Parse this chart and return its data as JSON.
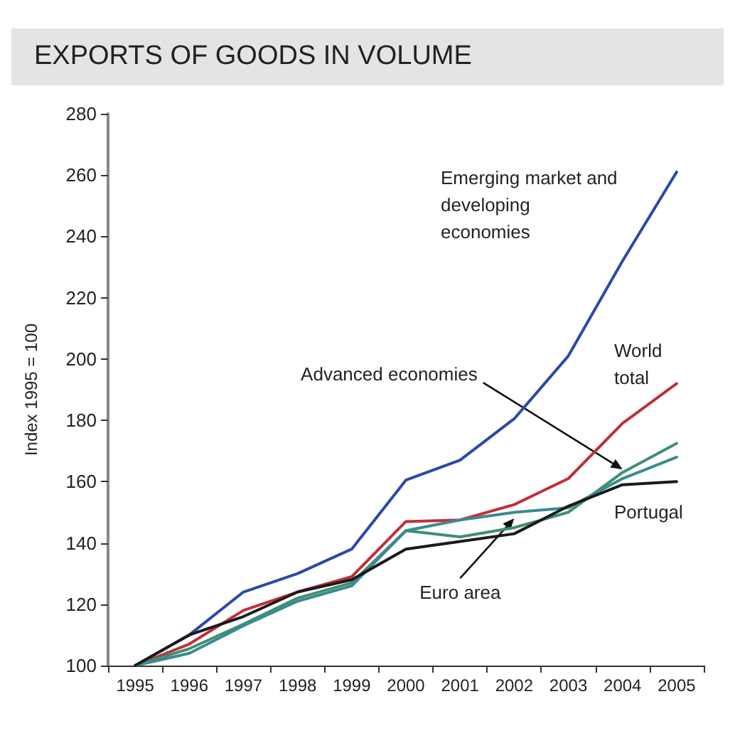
{
  "chart_data": {
    "type": "line",
    "title": "EXPORTS OF GOODS IN VOLUME",
    "ylabel": "Index 1995 = 100",
    "categories": [
      "1995",
      "1996",
      "1997",
      "1998",
      "1999",
      "2000",
      "2001",
      "2002",
      "2003",
      "2004",
      "2005"
    ],
    "series": [
      {
        "color": "#2a4aa8",
        "values": [
          100,
          110,
          124,
          130,
          138,
          160.5,
          167,
          180.5,
          201,
          232,
          261
        ]
      },
      {
        "color": "#c0303a",
        "values": [
          100,
          107,
          118,
          124,
          129,
          147,
          147.5,
          152.5,
          161,
          179,
          192
        ]
      },
      {
        "color": "#3e9070",
        "values": [
          100,
          105.5,
          113.5,
          122,
          127,
          144,
          142,
          145,
          150,
          163,
          172.5
        ]
      },
      {
        "color": "#3a8a92",
        "values": [
          100,
          104,
          113,
          121,
          126,
          144,
          147.5,
          150,
          151.5,
          161,
          168
        ]
      },
      {
        "color": "#1a1a1a",
        "values": [
          100,
          110,
          116,
          124,
          128,
          138,
          140.5,
          143,
          152,
          159,
          160
        ]
      }
    ],
    "ylim": [
      100,
      280
    ],
    "yticks": [
      100,
      120,
      140,
      160,
      180,
      200,
      220,
      240,
      260,
      280
    ],
    "grid": false,
    "marker": "none",
    "line_style": "solid",
    "annotations": [
      "Emerging market and\ndeveloping\neconomies",
      "World\ntotal",
      {
        "text": "Advanced economies",
        "x": "2004",
        "y": 164
      },
      "Portugal",
      {
        "text": "Euro area",
        "x": "2002",
        "y": 148
      }
    ]
  }
}
